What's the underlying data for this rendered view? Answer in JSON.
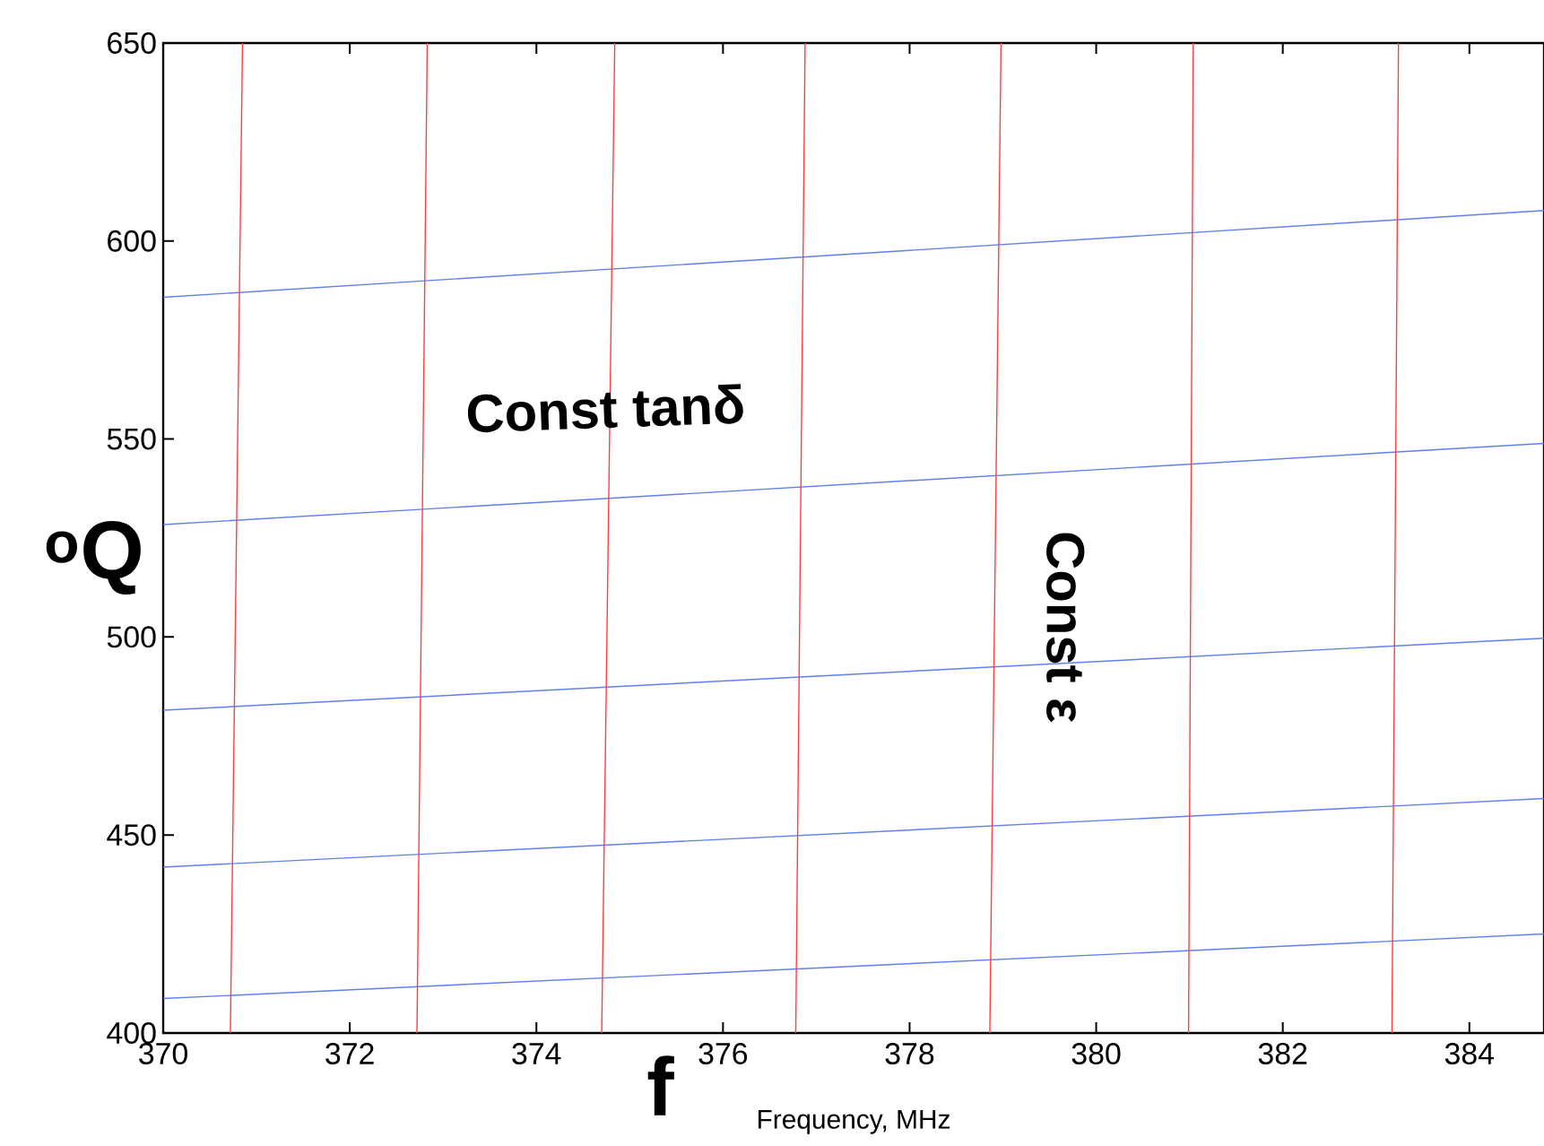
{
  "chart_data": {
    "type": "line",
    "xlabel": "f",
    "ylabel": "$^{o}$Q",
    "annotations": [
      "Const tanδ",
      "Const ε",
      "Frequency, MHz"
    ],
    "xlim": [
      370,
      384.8
    ],
    "ylim": [
      400,
      650
    ],
    "xticks": [
      370,
      372,
      374,
      376,
      378,
      380,
      382,
      384
    ],
    "yticks": [
      400,
      450,
      500,
      550,
      600,
      650
    ],
    "grid": false,
    "series": [
      {
        "color": "#6080f0",
        "x": [
          370,
          384.8
        ],
        "values": [
          585.8,
          607.7
        ]
      },
      {
        "color": "#6080f0",
        "x": [
          370,
          384.8
        ],
        "values": [
          528.4,
          548.9
        ]
      },
      {
        "color": "#6080f0",
        "x": [
          370,
          384.8
        ],
        "values": [
          481.5,
          499.7
        ]
      },
      {
        "color": "#6080f0",
        "x": [
          370,
          384.8
        ],
        "values": [
          441.9,
          459.2
        ]
      },
      {
        "color": "#6080f0",
        "x": [
          370,
          384.8
        ],
        "values": [
          408.7,
          425
        ]
      },
      {
        "color": "#ff4040",
        "x": [
          370.72,
          370.85
        ],
        "values": [
          400,
          650
        ]
      },
      {
        "color": "#ff4040",
        "x": [
          372.72,
          372.83
        ],
        "values": [
          400,
          650
        ]
      },
      {
        "color": "#ff4040",
        "x": [
          374.7,
          374.84
        ],
        "values": [
          400,
          650
        ]
      },
      {
        "color": "#ff4040",
        "x": [
          376.78,
          376.88
        ],
        "values": [
          400,
          650
        ]
      },
      {
        "color": "#ff4040",
        "x": [
          378.86,
          378.98
        ],
        "values": [
          400,
          650
        ]
      },
      {
        "color": "#ff4040",
        "x": [
          380.99,
          381.04
        ],
        "values": [
          400,
          650
        ]
      },
      {
        "color": "#ff4040",
        "x": [
          383.17,
          383.24
        ],
        "values": [
          400,
          650
        ]
      }
    ]
  }
}
